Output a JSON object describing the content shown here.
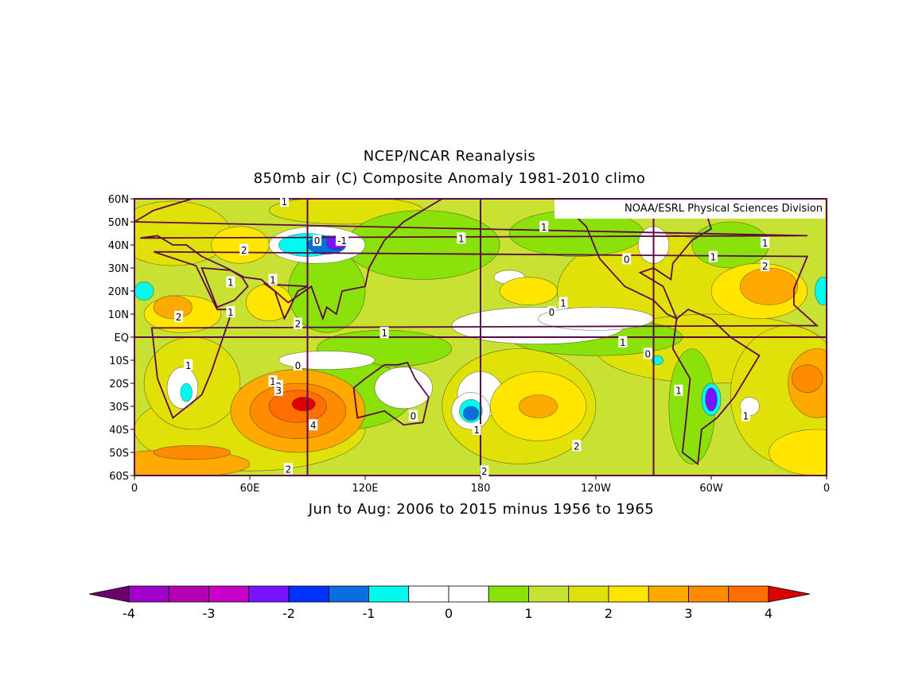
{
  "title_line1": "NCEP/NCAR Reanalysis",
  "title_line2": "850mb air (C) Composite Anomaly 1981-2010 climo",
  "subtitle": "Jun to Aug: 2006 to 2015 minus 1956 to 1965",
  "credit": "NOAA/ESRL Physical Sciences Division",
  "map": {
    "lat_labels": [
      "60N",
      "50N",
      "40N",
      "30N",
      "20N",
      "10N",
      "EQ",
      "10S",
      "20S",
      "30S",
      "40S",
      "50S",
      "60S"
    ],
    "lon_labels": [
      "0",
      "60E",
      "120E",
      "180",
      "120W",
      "60W",
      "0"
    ],
    "contour_labels": [
      {
        "text": "1",
        "lon": 78,
        "lat": 59
      },
      {
        "text": "0",
        "lon": 95,
        "lat": 42
      },
      {
        "text": "-1",
        "lon": 108,
        "lat": 42
      },
      {
        "text": "2",
        "lon": 57,
        "lat": 38
      },
      {
        "text": "1",
        "lon": 170,
        "lat": 43
      },
      {
        "text": "1",
        "lon": 213,
        "lat": 48
      },
      {
        "text": "1",
        "lon": 328,
        "lat": 41
      },
      {
        "text": "1",
        "lon": 301,
        "lat": 35
      },
      {
        "text": "0",
        "lon": 256,
        "lat": 34
      },
      {
        "text": "2",
        "lon": 328,
        "lat": 31
      },
      {
        "text": "1",
        "lon": 50,
        "lat": 24
      },
      {
        "text": "1",
        "lon": 72,
        "lat": 25
      },
      {
        "text": "2",
        "lon": 23,
        "lat": 9
      },
      {
        "text": "1",
        "lon": 50,
        "lat": 11
      },
      {
        "text": "2",
        "lon": 85,
        "lat": 6
      },
      {
        "text": "1",
        "lon": 223,
        "lat": 15
      },
      {
        "text": "0",
        "lon": 217,
        "lat": 11
      },
      {
        "text": "1",
        "lon": 130,
        "lat": 2
      },
      {
        "text": "1",
        "lon": 254,
        "lat": -2
      },
      {
        "text": "0",
        "lon": 267,
        "lat": -7
      },
      {
        "text": "1",
        "lon": 28,
        "lat": -12
      },
      {
        "text": "0",
        "lon": 85,
        "lat": -12
      },
      {
        "text": "1",
        "lon": 72,
        "lat": -19
      },
      {
        "text": "2",
        "lon": 75,
        "lat": -21
      },
      {
        "text": "3",
        "lon": 75,
        "lat": -23
      },
      {
        "text": "4",
        "lon": 93,
        "lat": -38
      },
      {
        "text": "0",
        "lon": 145,
        "lat": -34
      },
      {
        "text": "1",
        "lon": 178,
        "lat": -40
      },
      {
        "text": "2",
        "lon": 230,
        "lat": -47
      },
      {
        "text": "1",
        "lon": 283,
        "lat": -23
      },
      {
        "text": "1",
        "lon": 318,
        "lat": -34
      },
      {
        "text": "2",
        "lon": 80,
        "lat": -57
      },
      {
        "text": "2",
        "lon": 182,
        "lat": -58
      }
    ]
  },
  "colorbar": {
    "tick_labels": [
      "-4",
      "-3",
      "-2",
      "-1",
      "0",
      "1",
      "2",
      "3",
      "4"
    ],
    "colors": [
      "#a000c8",
      "#b400b4",
      "#c800c8",
      "#7814ff",
      "#0032ff",
      "#0a6ede",
      "#00faf0",
      "#ffffff",
      "#ffffff",
      "#8be10a",
      "#c8e132",
      "#e1e10a",
      "#ffe600",
      "#ffaa00",
      "#ff8c00",
      "#ff6e00"
    ],
    "left_arrow_color": "#6e006e",
    "right_arrow_color": "#dc0000"
  },
  "map_colors": {
    "neg2": "#7814ff",
    "neg1": "#0a6ede",
    "neg05": "#00faf0",
    "zero": "#ffffff",
    "pos05": "#8be10a",
    "pos1": "#c8e132",
    "pos15": "#e1e10a",
    "pos2": "#ffe600",
    "pos25": "#ffaa00",
    "pos3": "#ff8c00",
    "pos35": "#ff6e00",
    "pos4": "#dc0000",
    "coast": "#5a0a46",
    "grid": "#5a0a46"
  }
}
